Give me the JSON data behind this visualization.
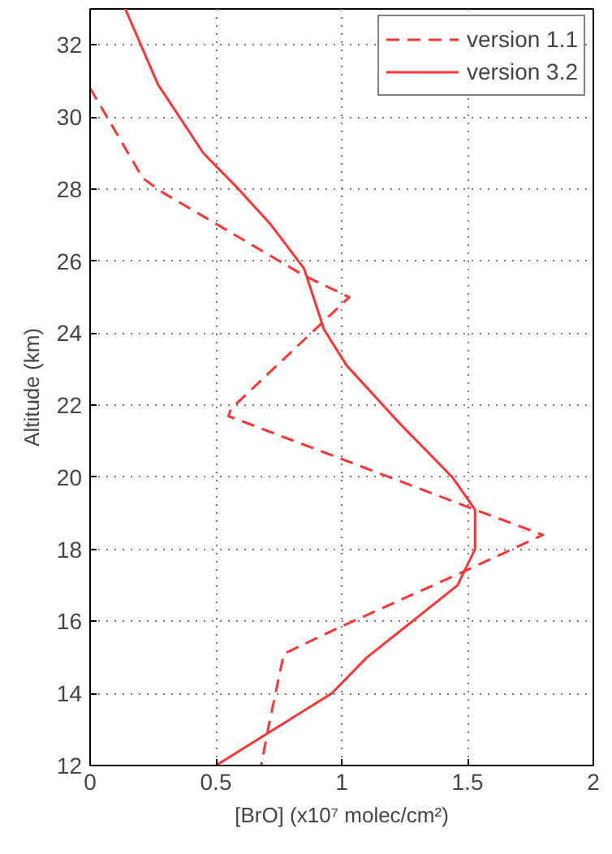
{
  "chart_data": {
    "type": "line",
    "xlabel": "[BrO] (x10⁷ molec/cm²)",
    "ylabel": "Altitude (km)",
    "xlim": [
      0,
      2
    ],
    "ylim": [
      12,
      33
    ],
    "xticks": [
      0,
      0.5,
      1,
      1.5,
      2
    ],
    "yticks": [
      12,
      14,
      16,
      18,
      20,
      22,
      24,
      26,
      28,
      30,
      32
    ],
    "grid": true,
    "legend": "top right",
    "series": [
      {
        "name": "version 1.1",
        "color": "#ff3333",
        "line_style": "dashed",
        "x": [
          0.0,
          0.21,
          0.29,
          0.85,
          1.03,
          0.56,
          0.55,
          1.53,
          1.8,
          1.49,
          0.98,
          0.77,
          0.71,
          0.68
        ],
        "values": [
          30.8,
          28.3,
          27.9,
          25.6,
          25.0,
          21.9,
          21.7,
          19.1,
          18.4,
          17.4,
          15.8,
          15.1,
          13.1,
          12.0
        ]
      },
      {
        "name": "version 3.2",
        "color": "#ff3333",
        "line_style": "solid",
        "x": [
          0.14,
          0.27,
          0.45,
          0.59,
          0.72,
          0.85,
          0.93,
          1.02,
          1.23,
          1.44,
          1.53,
          1.53,
          1.46,
          1.1,
          0.96,
          0.5
        ],
        "values": [
          33.0,
          30.9,
          29.0,
          28.0,
          27.0,
          25.8,
          24.1,
          23.1,
          21.5,
          20.0,
          19.1,
          18.0,
          17.0,
          15.0,
          14.0,
          12.0
        ]
      }
    ]
  }
}
